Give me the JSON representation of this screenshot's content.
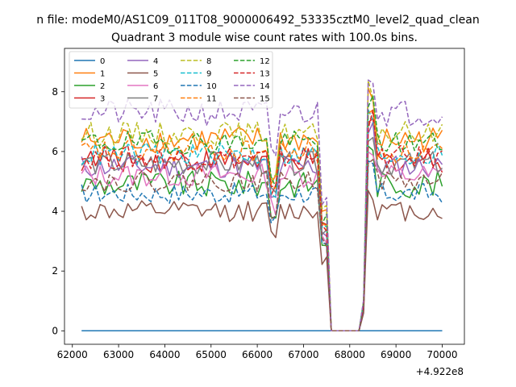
{
  "chart_data": {
    "type": "line",
    "suptitle": "n file: modeM0/AS1C09_011T08_9000006492_53335cztM0_level2_quad_clean",
    "title": "Quadrant 3 module wise count rates with 100.0s bins.",
    "x_offset_label": "+4.922e8",
    "xlabel": "",
    "ylabel": "",
    "xlim": [
      61830,
      70480
    ],
    "ylim": [
      -0.45,
      9.45
    ],
    "xticks": [
      62000,
      63000,
      64000,
      65000,
      66000,
      67000,
      68000,
      69000,
      70000
    ],
    "yticks": [
      0,
      2,
      4,
      6,
      8
    ],
    "xtick_labels": [
      "62000",
      "63000",
      "64000",
      "65000",
      "66000",
      "67000",
      "68000",
      "69000",
      "70000"
    ],
    "ytick_labels": [
      "0",
      "2",
      "4",
      "6",
      "8"
    ],
    "legend": {
      "position": "upper-left",
      "columns": 4
    },
    "series": [
      {
        "name": "0",
        "color": "#1f77b4",
        "dash": false,
        "level": 0.0,
        "amp": 0.0
      },
      {
        "name": "1",
        "color": "#ff7f0e",
        "dash": false,
        "level": 6.4,
        "amp": 0.45
      },
      {
        "name": "2",
        "color": "#2ca02c",
        "dash": false,
        "level": 4.9,
        "amp": 0.45
      },
      {
        "name": "3",
        "color": "#d62728",
        "dash": false,
        "level": 5.7,
        "amp": 0.4
      },
      {
        "name": "4",
        "color": "#9467bd",
        "dash": false,
        "level": 5.5,
        "amp": 0.4
      },
      {
        "name": "5",
        "color": "#8c564b",
        "dash": false,
        "level": 4.0,
        "amp": 0.35
      },
      {
        "name": "6",
        "color": "#e377c2",
        "dash": false,
        "level": 5.2,
        "amp": 0.4
      },
      {
        "name": "7",
        "color": "#7f7f7f",
        "dash": false,
        "level": 5.6,
        "amp": 0.4
      },
      {
        "name": "8",
        "color": "#bcbd22",
        "dash": true,
        "level": 6.6,
        "amp": 0.4
      },
      {
        "name": "9",
        "color": "#17becf",
        "dash": true,
        "level": 5.9,
        "amp": 0.4
      },
      {
        "name": "10",
        "color": "#1f77b4",
        "dash": true,
        "level": 4.6,
        "amp": 0.35
      },
      {
        "name": "11",
        "color": "#ff7f0e",
        "dash": true,
        "level": 6.0,
        "amp": 0.4
      },
      {
        "name": "12",
        "color": "#2ca02c",
        "dash": true,
        "level": 6.3,
        "amp": 0.4
      },
      {
        "name": "13",
        "color": "#d62728",
        "dash": true,
        "level": 5.8,
        "amp": 0.4
      },
      {
        "name": "14",
        "color": "#9467bd",
        "dash": true,
        "level": 7.3,
        "amp": 0.45
      },
      {
        "name": "15",
        "color": "#8c564b",
        "dash": true,
        "level": 5.0,
        "amp": 0.35
      }
    ],
    "bin_size_s": 100,
    "x_start": 62200,
    "x_end": 70050,
    "gap_start": 67550,
    "gap_end": 68250,
    "dip_x": 66350,
    "dip_scale": 0.8,
    "rise_x": 68450,
    "rise_scale": 1.2,
    "drop_x": 67450,
    "drop_scale": 0.6,
    "end_x": 70050,
    "end_scale": 0.08
  }
}
